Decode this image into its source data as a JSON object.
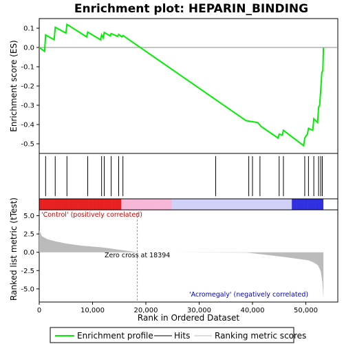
{
  "chart_data": {
    "type": "line",
    "title": "Enrichment plot: HEPARIN_BINDING",
    "xlabel": "Rank in Ordered Dataset",
    "ylabel_top": "Enrichment score (ES)",
    "ylabel_bottom": "Ranked list metric (tTest)",
    "xlim": [
      0,
      56000
    ],
    "es_ylim": [
      -0.55,
      0.15
    ],
    "metric_ylim": [
      -6.8,
      5.8
    ],
    "x_ticks": [
      0,
      10000,
      20000,
      30000,
      40000,
      50000
    ],
    "x_tick_labels": [
      "0",
      "10,000",
      "20,000",
      "30,000",
      "40,000",
      "50,000"
    ],
    "es_ticks": [
      0.1,
      0.0,
      -0.1,
      -0.2,
      -0.3,
      -0.4,
      -0.5
    ],
    "es_tick_labels": [
      "0.1",
      "0.0",
      "-0.1",
      "-0.2",
      "-0.3",
      "-0.4",
      "-0.5"
    ],
    "metric_ticks": [
      5.0,
      2.5,
      0.0,
      -2.5,
      -5.0
    ],
    "metric_tick_labels": [
      "5.0",
      "2.5",
      "0.0",
      "-2.5",
      "-5.0"
    ],
    "series": [
      {
        "name": "Enrichment profile",
        "color": "#00ee00",
        "x": [
          0,
          1000,
          1200,
          2800,
          3000,
          5000,
          5200,
          8900,
          9100,
          11500,
          11700,
          12000,
          12200,
          13300,
          13500,
          14700,
          14900,
          15500,
          15700,
          38800,
          41000,
          41600,
          44800,
          45000,
          45600,
          45800,
          49600,
          49800,
          50300,
          50500,
          51300,
          51500,
          52200,
          52400,
          52600,
          52800,
          53000,
          53200,
          53300
        ],
        "values": [
          0.0,
          -0.02,
          0.065,
          0.04,
          0.105,
          0.075,
          0.12,
          0.055,
          0.08,
          0.04,
          0.065,
          0.05,
          0.078,
          0.06,
          0.072,
          0.058,
          0.068,
          0.055,
          0.062,
          -0.38,
          -0.39,
          -0.41,
          -0.47,
          -0.45,
          -0.455,
          -0.43,
          -0.51,
          -0.47,
          -0.45,
          -0.42,
          -0.43,
          -0.37,
          -0.39,
          -0.31,
          -0.3,
          -0.22,
          -0.13,
          -0.12,
          0.0
        ]
      }
    ],
    "hits": [
      1200,
      3000,
      5200,
      9100,
      11700,
      12200,
      13500,
      14900,
      15700,
      33100,
      39300,
      40000,
      41400,
      45000,
      45800,
      49800,
      50500,
      51500,
      52400,
      52800,
      53100
    ],
    "metric_curve": {
      "x": [
        0,
        500,
        1500,
        3000,
        5000,
        8000,
        12000,
        15000,
        17500,
        18394,
        25000,
        39000,
        42000,
        46000,
        48500,
        50500,
        51500,
        52300,
        52800,
        53100,
        53300
      ],
      "values": [
        3.0,
        2.2,
        1.8,
        1.5,
        1.2,
        0.9,
        0.65,
        0.35,
        0.1,
        0.0,
        0.0,
        -0.05,
        -0.3,
        -0.65,
        -0.9,
        -1.1,
        -1.4,
        -1.8,
        -2.6,
        -4.0,
        -6.3
      ]
    },
    "zero_cross": 18394,
    "dataset_size": 53300,
    "rank_bar": {
      "red": "#e82020",
      "pink": "#f7b7d8",
      "lavender": "#d0d0f8",
      "blue": "#3030e0"
    },
    "annotations": {
      "positive": "'Control' (positively correlated)",
      "negative": "'Acromegaly' (negatively correlated)",
      "zero_cross": "Zero cross at 18394"
    },
    "legend": [
      {
        "label": "Enrichment profile",
        "color": "#00ee00"
      },
      {
        "label": "Hits",
        "color": "#000000"
      },
      {
        "label": "Ranking metric scores",
        "color": "#bbbbbb"
      }
    ]
  }
}
